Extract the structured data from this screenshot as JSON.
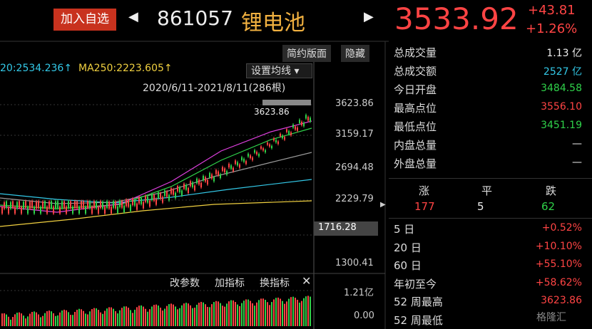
{
  "header": {
    "add_watchlist": "加入自选",
    "code": "861057",
    "name": "锂电池",
    "price": "3533.92",
    "change": "+43.81",
    "change_pct": "+1.26%"
  },
  "chart": {
    "buttons": [
      "简约版面",
      "隐藏"
    ],
    "ma_labels": [
      "20:2534.236↑",
      "MA250:2223.605↑"
    ],
    "ma_settings": "设置均线",
    "date_range": "2020/6/11-2021/8/11(286根)",
    "peak_label": "3623.86",
    "y_labels": [
      "3623.86",
      "3159.17",
      "2694.48",
      "2229.79",
      "1716.28",
      "1300.41"
    ],
    "toolbar": [
      "改参数",
      "加指标",
      "换指标"
    ],
    "volume_labels": [
      "1.21亿",
      "0.00"
    ]
  },
  "stats": [
    {
      "label": "总成交量",
      "value": "1.13 亿"
    },
    {
      "label": "总成交额",
      "value": "2527 亿"
    },
    {
      "label": "今日开盘",
      "value": "3484.58"
    },
    {
      "label": "最高点位",
      "value": "3556.10"
    },
    {
      "label": "最低点位",
      "value": "3451.19"
    },
    {
      "label": "内盘总量",
      "value": "—"
    },
    {
      "label": "外盘总量",
      "value": "—"
    }
  ],
  "breadth": {
    "headers": [
      "涨",
      "平",
      "跌"
    ],
    "values": [
      "177",
      "5",
      "62"
    ]
  },
  "performance": [
    {
      "label": "5 日",
      "value": "+0.52%"
    },
    {
      "label": "20 日",
      "value": "+10.10%"
    },
    {
      "label": "60 日",
      "value": "+55.10%"
    },
    {
      "label": "年初至今",
      "value": "+58.62%"
    },
    {
      "label": "52 周最高",
      "value": "3623.86"
    },
    {
      "label": "52 周最低",
      "value": ""
    }
  ],
  "watermark": "格隆汇"
}
